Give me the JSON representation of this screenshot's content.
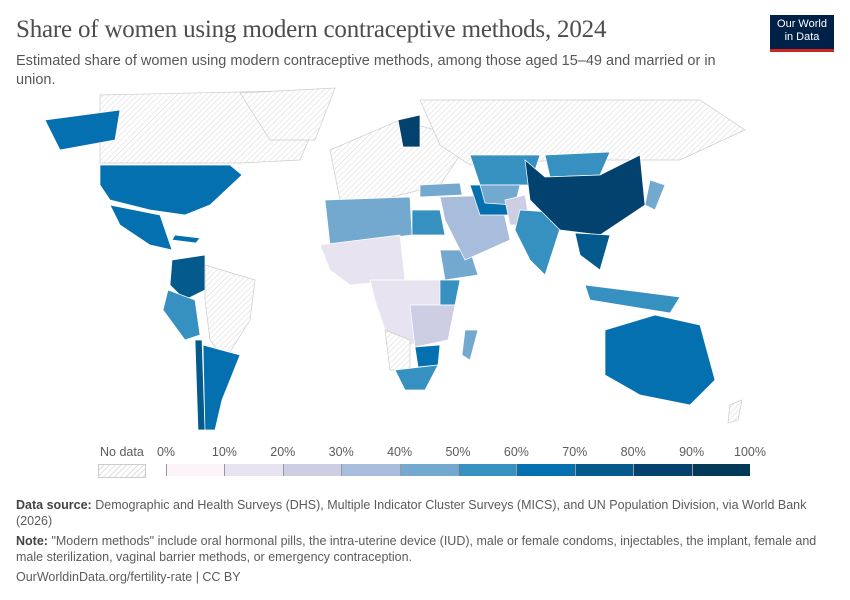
{
  "header": {
    "title": "Share of women using modern contraceptive methods, 2024",
    "subtitle": "Estimated share of women using modern contraceptive methods, among those aged 15–49 and married or in union.",
    "logo_line1": "Our World",
    "logo_line2": "in Data"
  },
  "legend": {
    "no_data_label": "No data",
    "ticks": [
      "0%",
      "10%",
      "20%",
      "30%",
      "40%",
      "50%",
      "60%",
      "70%",
      "80%",
      "90%",
      "100%"
    ],
    "bin_colors": [
      "#fcf4f9",
      "#e8e3f0",
      "#cdcde3",
      "#a7bddb",
      "#74a9cf",
      "#3690c0",
      "#0570b0",
      "#045a8d",
      "#03426e",
      "#023858"
    ],
    "no_data_color": "hatched"
  },
  "chart_data": {
    "type": "map",
    "unit": "%",
    "range": [
      0,
      100
    ],
    "values": {
      "Alaska_USA": 65,
      "USA": 65,
      "Mexico": 67,
      "Cuba": 68,
      "Colombia": 76,
      "Peru": 55,
      "Argentina": 68,
      "Chile": 70,
      "Finland": 85,
      "NorthAfrica": 45,
      "Egypt": 58,
      "WestAfrica": 15,
      "CentralAfrica": 15,
      "EastAfrica": 25,
      "Kenya": 58,
      "Ethiopia": 40,
      "Zimbabwe": 67,
      "SouthAfrica": 55,
      "Madagascar": 45,
      "MiddleEast": 38,
      "Kazakhstan": 50,
      "CentralAsia": 45,
      "India": 56,
      "Pakistan": 28,
      "China": 85,
      "Mongolia": 50,
      "SoutheastAsia": 70,
      "Indonesia": 57,
      "Japan": 45,
      "Australia": 65,
      "Turkey": 48,
      "Iran": 60
    },
    "no_data": [
      "Canada",
      "Greenland",
      "Brazil",
      "Europe",
      "Russia",
      "Angola",
      "NewZealand"
    ]
  },
  "footer": {
    "source_label": "Data source:",
    "source_text": "Demographic and Health Surveys (DHS), Multiple Indicator Cluster Surveys (MICS), and UN Population Division, via World Bank (2026)",
    "note_label": "Note:",
    "note_text": "\"Modern methods\" include oral hormonal pills, the intra-uterine device (IUD), male or female condoms, injectables, the implant, female and male sterilization, vaginal barrier methods, or emergency contraception.",
    "url": "OurWorldinData.org/fertility-rate | CC BY"
  }
}
